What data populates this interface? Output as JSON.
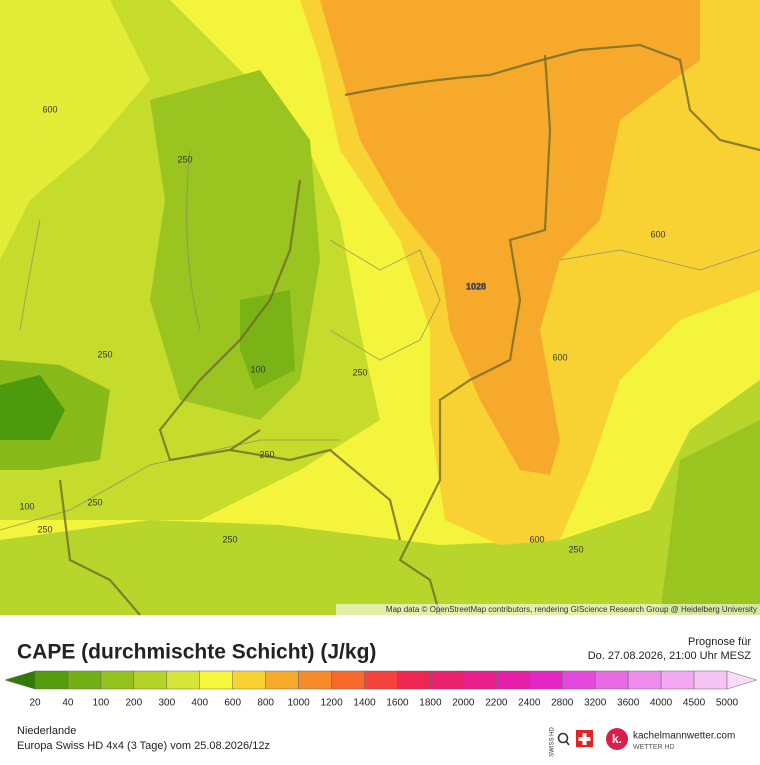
{
  "map": {
    "contour_labels": [
      "600",
      "250",
      "250",
      "100",
      "250",
      "250",
      "1028",
      "600",
      "600",
      "100",
      "250",
      "250",
      "250",
      "600",
      "250"
    ],
    "attribution": "Map data © OpenStreetMap contributors, rendering GIScience Research Group @ Heidelberg University"
  },
  "header": {
    "title": "CAPE (durchmischte Schicht) (J/kg)",
    "forecast_label": "Prognose für",
    "forecast_time": "Do. 27.08.2026, 21:00 Uhr MESZ"
  },
  "legend": {
    "ticks": [
      20,
      40,
      100,
      200,
      300,
      400,
      600,
      800,
      1000,
      1200,
      1400,
      1600,
      1800,
      2000,
      2200,
      2400,
      2800,
      3200,
      3600,
      4000,
      4500,
      5000
    ],
    "colors": [
      "#2f7d00",
      "#559c0c",
      "#72b015",
      "#93c21e",
      "#b4d42a",
      "#d6e636",
      "#f7f73c",
      "#f8d232",
      "#f7a92c",
      "#f78a2a",
      "#f76a2c",
      "#f3433a",
      "#ef264f",
      "#ea1f6e",
      "#e81f8c",
      "#e61faa",
      "#e526c6",
      "#e548dc",
      "#e96ae5",
      "#ee8cec",
      "#f2a9f1",
      "#f6c4f6",
      "#fadafa"
    ]
  },
  "footer": {
    "region": "Niederlande",
    "model": "Europa Swiss HD 4x4 (3 Tage) vom  25.08.2026/12z",
    "swiss_hd": "SWISS HD",
    "brand": "kachelmannwetter.com",
    "brand_sub": "WETTER HD"
  }
}
